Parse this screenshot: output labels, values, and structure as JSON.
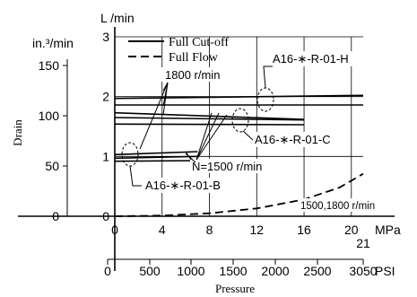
{
  "chart_data": {
    "type": "line",
    "title": "",
    "xlabel": "Pressure",
    "ylabel": "Drain",
    "x_primary": {
      "unit": "MPa",
      "range": [
        0,
        21
      ],
      "ticks": [
        0,
        4,
        8,
        12,
        16,
        20
      ],
      "tick_labels": [
        "0",
        "4",
        "8",
        "12",
        "16",
        "20"
      ],
      "end_label": "21"
    },
    "x_secondary": {
      "unit": "PSI",
      "ticks": [
        0,
        500,
        1000,
        1500,
        2000,
        2500,
        3050
      ],
      "tick_labels": [
        "0",
        "500",
        "1000",
        "1500",
        "2000",
        "2500",
        "3050"
      ]
    },
    "y_primary": {
      "unit": "L /min",
      "range": [
        0,
        3
      ],
      "ticks": [
        0,
        1,
        2,
        3
      ],
      "tick_labels": [
        "0",
        "1",
        "2",
        "3"
      ]
    },
    "y_secondary": {
      "unit": "in.³/min",
      "ticks": [
        0,
        50,
        100,
        150
      ],
      "tick_labels": [
        "0",
        "50",
        "100",
        "150"
      ]
    },
    "grid": true,
    "legend": {
      "position": "top-center",
      "entries": [
        {
          "label": "Full Cut-off",
          "style": "solid"
        },
        {
          "label": "Full Flow",
          "style": "dashed"
        }
      ]
    },
    "series": [
      {
        "style": "solid",
        "x": [
          0,
          21
        ],
        "y": [
          1.97,
          2.02
        ]
      },
      {
        "style": "solid",
        "x": [
          0,
          21
        ],
        "y": [
          1.86,
          1.86
        ]
      },
      {
        "style": "solid",
        "x": [
          0,
          16
        ],
        "y": [
          1.73,
          1.62
        ]
      },
      {
        "style": "solid",
        "x": [
          0,
          16
        ],
        "y": [
          1.65,
          1.61
        ]
      },
      {
        "style": "solid",
        "x": [
          0,
          16
        ],
        "y": [
          1.54,
          1.53
        ]
      },
      {
        "style": "solid",
        "x": [
          0,
          7
        ],
        "y": [
          1.03,
          1.08
        ]
      },
      {
        "style": "solid",
        "x": [
          0,
          7
        ],
        "y": [
          0.97,
          1.0
        ]
      },
      {
        "style": "solid",
        "x": [
          0,
          7
        ],
        "y": [
          0.92,
          0.93
        ]
      },
      {
        "style": "dashed",
        "x": [
          0,
          4,
          8,
          12,
          16,
          19,
          21
        ],
        "y": [
          0.0,
          0.01,
          0.05,
          0.13,
          0.28,
          0.48,
          0.71
        ]
      }
    ],
    "annotations": [
      {
        "text": "1800 r/min"
      },
      {
        "text": "A16-∗-R-01-H"
      },
      {
        "text": "A16-∗-R-01-C"
      },
      {
        "text": "N=1500 r/min"
      },
      {
        "text": "A16-∗-R-01-B"
      },
      {
        "text": "1500,1800 r/min"
      }
    ]
  }
}
